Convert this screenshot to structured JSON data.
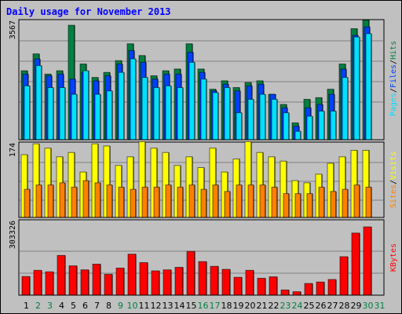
{
  "title": "Daily usage for November 2013",
  "chart_data": [
    {
      "type": "bar",
      "title": "Daily usage for November 2013",
      "y_tick_label": "3567",
      "ymax": 3567,
      "categories": [
        "1",
        "2",
        "3",
        "4",
        "5",
        "6",
        "7",
        "8",
        "9",
        "10",
        "11",
        "12",
        "13",
        "14",
        "15",
        "16",
        "17",
        "18",
        "19",
        "20",
        "21",
        "22",
        "23",
        "24",
        "25",
        "26",
        "27",
        "28",
        "29",
        "30",
        "31"
      ],
      "weekend_categories": [
        "2",
        "3",
        "9",
        "10",
        "16",
        "17",
        "23",
        "24",
        "30",
        "31"
      ],
      "legend": [
        "Pages",
        "/",
        "Files",
        "/",
        "Hits"
      ],
      "series": [
        {
          "name": "Hits",
          "values": [
            2050,
            2550,
            1950,
            2050,
            3400,
            2250,
            1850,
            2000,
            2350,
            2850,
            2500,
            1900,
            2050,
            2100,
            2850,
            2100,
            1500,
            1750,
            1550,
            1700,
            1750,
            1350,
            1050,
            500,
            1200,
            1250,
            1500,
            2250,
            3300,
            3550,
            null
          ]
        },
        {
          "name": "Files",
          "values": [
            1950,
            2400,
            1900,
            1950,
            1800,
            2000,
            1750,
            1900,
            2250,
            2650,
            2300,
            1800,
            1950,
            1950,
            2600,
            2000,
            1450,
            1650,
            1450,
            1600,
            1650,
            1350,
            950,
            400,
            950,
            1050,
            1350,
            2100,
            3100,
            3350,
            null
          ]
        },
        {
          "name": "Pages",
          "values": [
            1600,
            2200,
            1550,
            1550,
            1350,
            2050,
            1350,
            1450,
            2000,
            2400,
            1850,
            1550,
            1600,
            1550,
            2300,
            1800,
            1400,
            1550,
            800,
            1200,
            1350,
            1200,
            800,
            250,
            700,
            850,
            850,
            1850,
            3050,
            3150,
            null
          ]
        }
      ]
    },
    {
      "type": "bar",
      "y_tick_label": "174",
      "ymax": 174,
      "legend": [
        "Sites",
        "/",
        "Visits"
      ],
      "series": [
        {
          "name": "Visits",
          "values": [
            145,
            170,
            160,
            140,
            150,
            105,
            170,
            165,
            120,
            140,
            175,
            160,
            150,
            120,
            140,
            115,
            160,
            105,
            135,
            175,
            150,
            140,
            130,
            85,
            80,
            100,
            125,
            140,
            155,
            155,
            null
          ]
        },
        {
          "name": "Sites",
          "values": [
            65,
            75,
            75,
            80,
            70,
            85,
            80,
            75,
            70,
            65,
            70,
            70,
            75,
            70,
            75,
            65,
            75,
            60,
            75,
            75,
            75,
            70,
            55,
            55,
            55,
            70,
            60,
            65,
            75,
            70,
            null
          ]
        }
      ]
    },
    {
      "type": "bar",
      "y_tick_label": "303326",
      "ymax": 303326,
      "legend": [
        "KBytes"
      ],
      "series": [
        {
          "name": "KBytes",
          "values": [
            75000,
            100000,
            94000,
            160000,
            118000,
            102000,
            125000,
            84000,
            109000,
            165000,
            131000,
            98000,
            102000,
            112000,
            176000,
            135000,
            116000,
            104000,
            72000,
            100000,
            68000,
            74000,
            21000,
            14000,
            47000,
            53000,
            63000,
            155000,
            250000,
            275000,
            null
          ]
        }
      ]
    }
  ]
}
